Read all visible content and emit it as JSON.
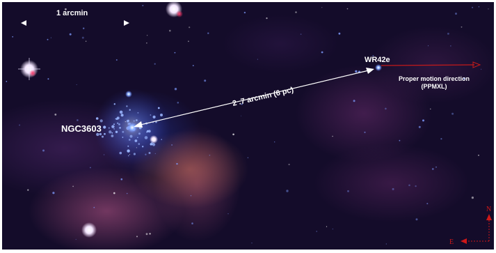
{
  "image": {
    "scale_label": "1 arcmin",
    "cluster_label": "NGC3603",
    "star_label": "WR42e",
    "distance_label": "2 .7 arcmin (6 pc)",
    "motion_label_line1": "Proper motion direction",
    "motion_label_line2": "(PPMXL)",
    "compass_north": "N",
    "compass_east": "E"
  },
  "colors": {
    "motion_arrow": "#c41a1a",
    "compass": "#d01818",
    "label": "#ffffff"
  }
}
